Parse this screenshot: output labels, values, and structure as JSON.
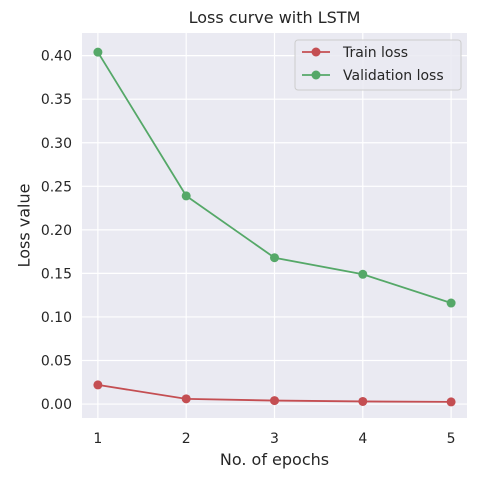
{
  "chart_data": {
    "type": "line",
    "title": "Loss curve with LSTM",
    "xlabel": "No. of epochs",
    "ylabel": "Loss value",
    "x": [
      1,
      2,
      3,
      4,
      5
    ],
    "x_tick_labels": [
      "1",
      "2",
      "3",
      "4",
      "5"
    ],
    "y_ticks": [
      0.0,
      0.05,
      0.1,
      0.15,
      0.2,
      0.25,
      0.3,
      0.35,
      0.4
    ],
    "y_tick_labels": [
      "0.00",
      "0.05",
      "0.10",
      "0.15",
      "0.20",
      "0.25",
      "0.30",
      "0.35",
      "0.40"
    ],
    "xlim": [
      0.82,
      5.18
    ],
    "ylim": [
      -0.016,
      0.426
    ],
    "grid": true,
    "legend_position": "top-right",
    "background_color": "#eaeaf2",
    "series": [
      {
        "name": "Train loss",
        "color": "#c44e52",
        "marker": "circle",
        "values": [
          0.022,
          0.006,
          0.004,
          0.003,
          0.0025
        ]
      },
      {
        "name": "Validation loss",
        "color": "#55a868",
        "marker": "circle",
        "values": [
          0.404,
          0.239,
          0.168,
          0.149,
          0.116
        ]
      }
    ]
  }
}
